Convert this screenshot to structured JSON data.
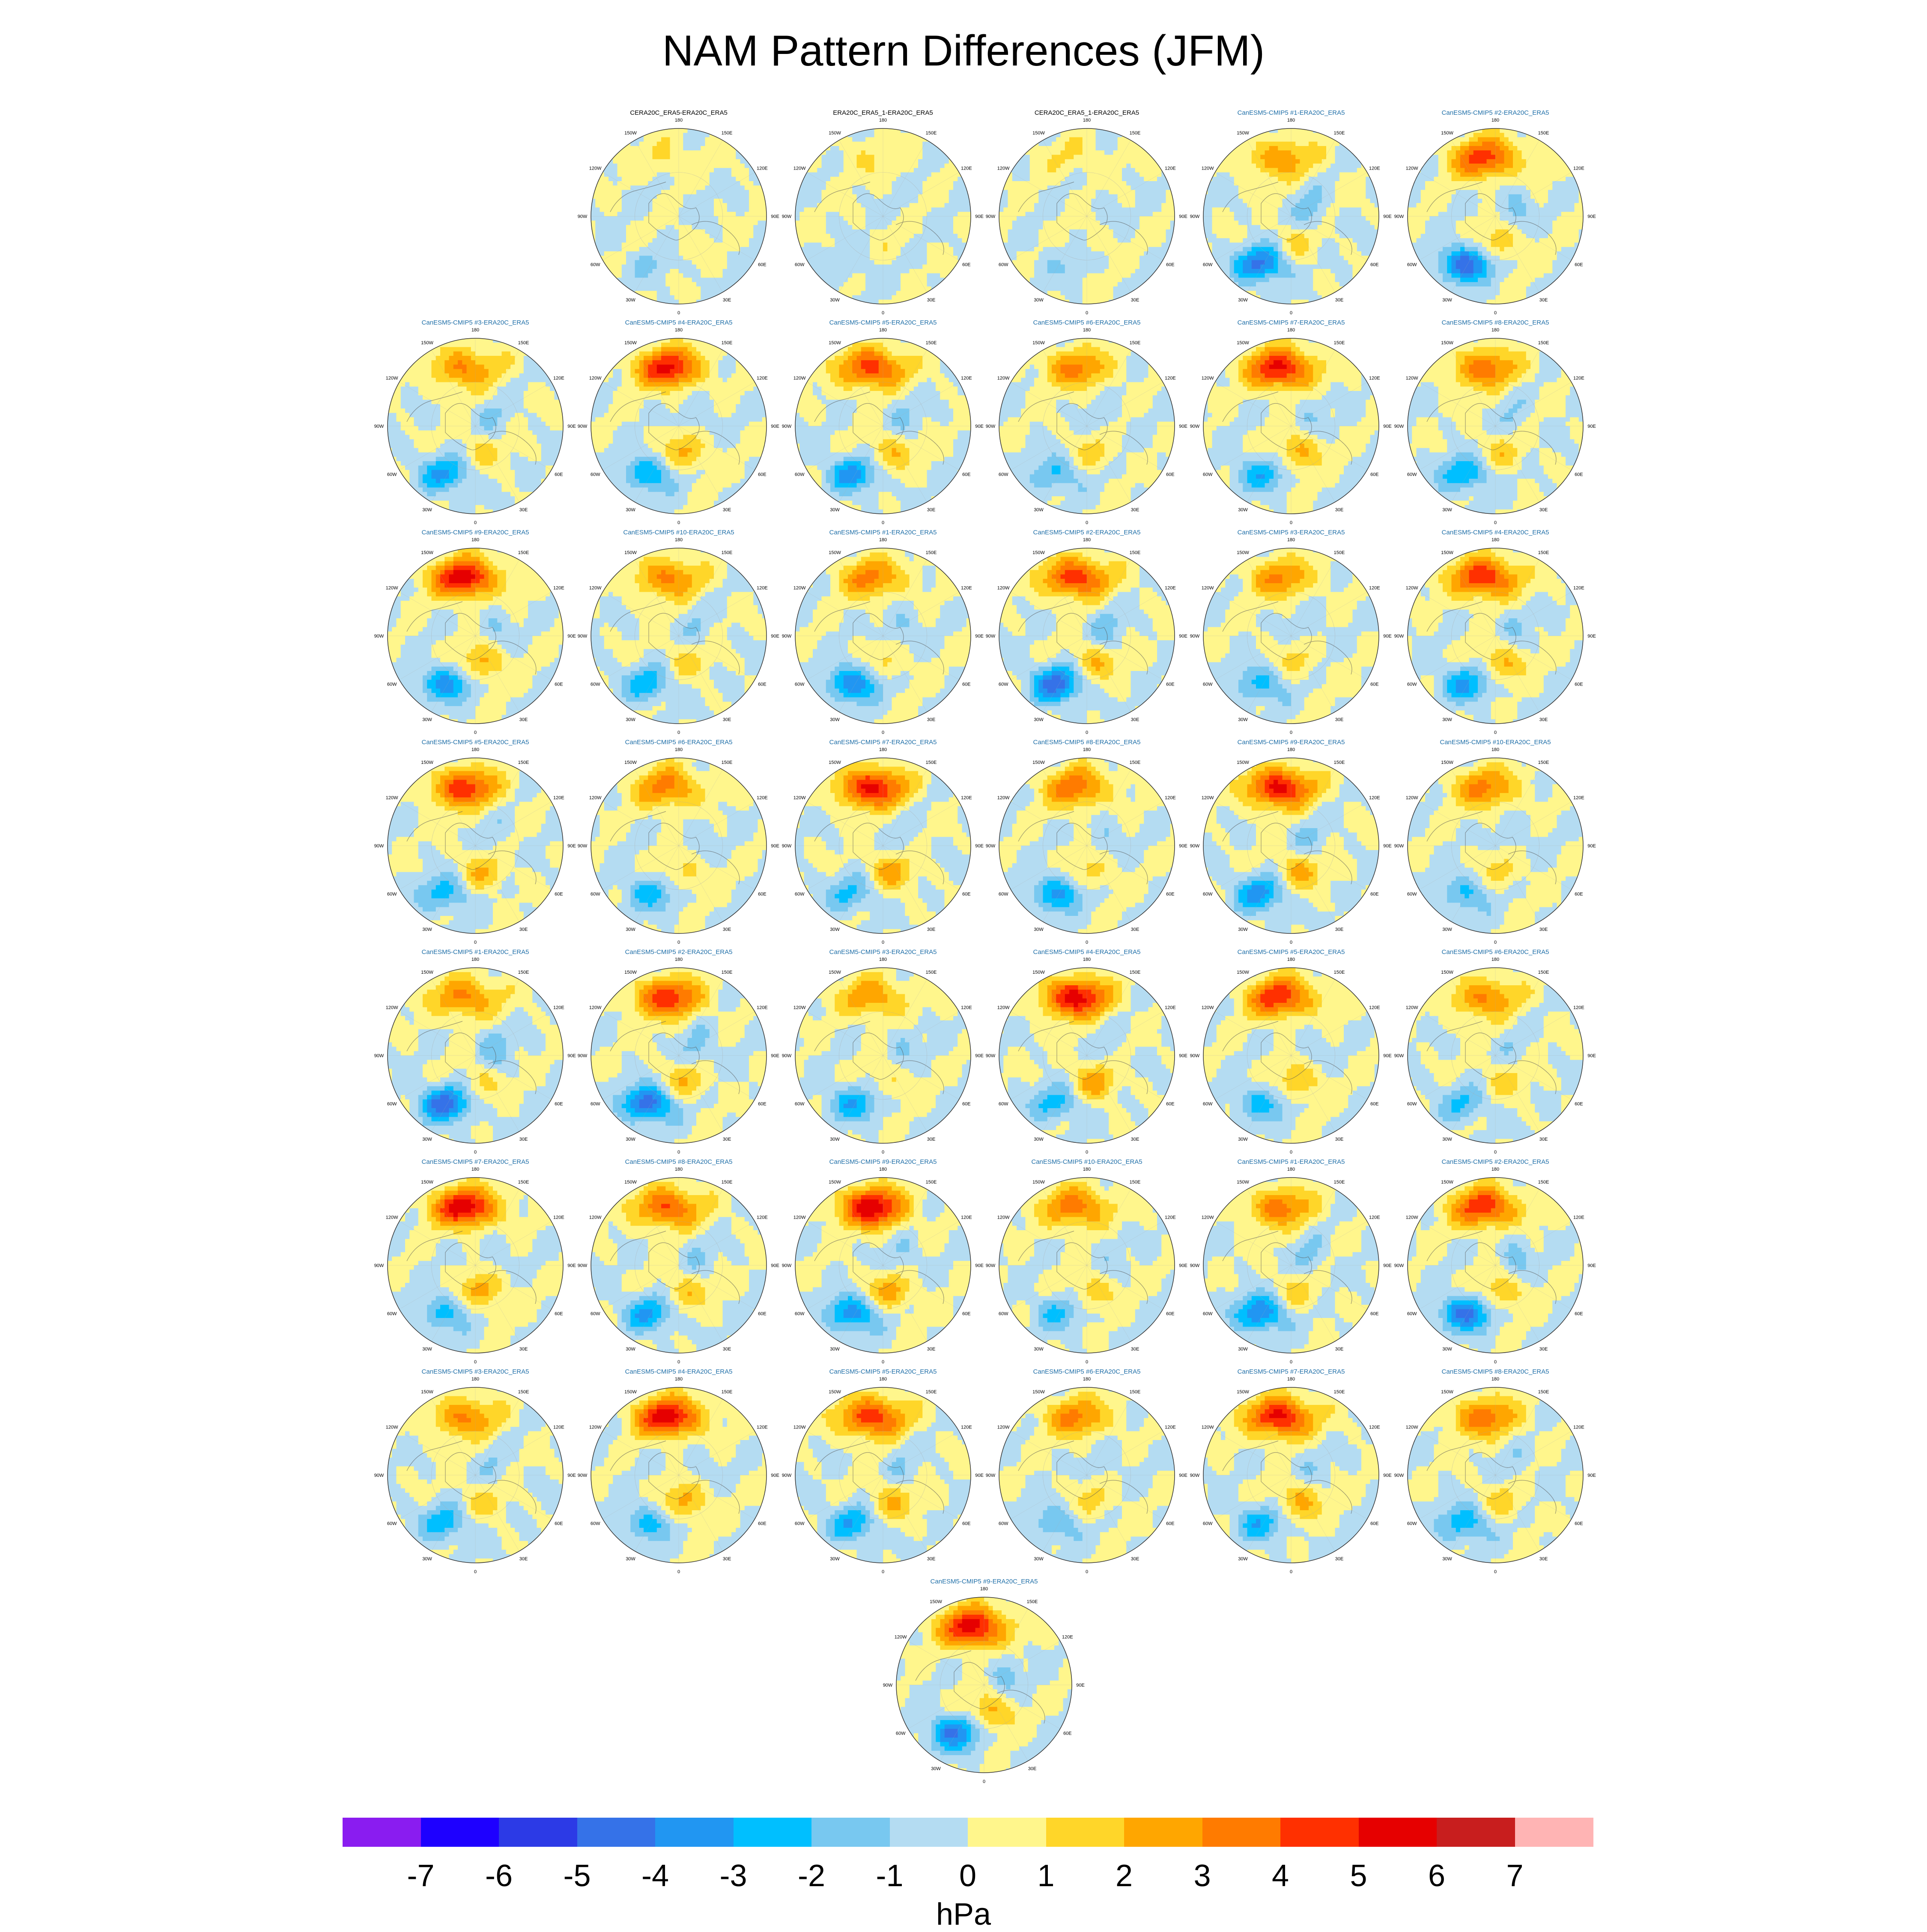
{
  "title": "NAM Pattern Differences (JFM)",
  "units": "hPa",
  "chart_data": {
    "type": "heatmap",
    "title": "NAM Pattern Differences (JFM)",
    "projection": "polar stereographic (North Pole)",
    "longitude_labels": [
      "180",
      "150E",
      "120E",
      "90E",
      "60E",
      "30E",
      "0",
      "30W",
      "60W",
      "90W",
      "120W",
      "150W"
    ],
    "colorbar": {
      "units": "hPa",
      "tick_labels": [
        "-7",
        "-6",
        "-5",
        "-4",
        "-3",
        "-2",
        "-1",
        "0",
        "1",
        "2",
        "3",
        "4",
        "5",
        "6",
        "7"
      ],
      "colors": [
        "#8a1cf0",
        "#1e00ff",
        "#2c3ae6",
        "#3572e8",
        "#2196f2",
        "#00bfff",
        "#78c8f0",
        "#b4dcf2",
        "#fff68c",
        "#ffd629",
        "#ffa600",
        "#ff7b00",
        "#ff3000",
        "#e60000",
        "#c81e1e",
        "#ffb4b4"
      ]
    },
    "panels": [
      {
        "title": "CERA20C_ERA5-ERA20C_ERA5",
        "kind": "obs",
        "pos_amp": 1.1,
        "neg_amp": 0.9
      },
      {
        "title": "ERA20C_ERA5_1-ERA20C_ERA5",
        "kind": "obs",
        "pos_amp": 1.0,
        "neg_amp": 0.8
      },
      {
        "title": "CERA20C_ERA5_1-ERA20C_ERA5",
        "kind": "obs",
        "pos_amp": 1.0,
        "neg_amp": 0.8
      },
      {
        "title": "CanESM5-CMIP5 #1-ERA20C_ERA5",
        "kind": "model",
        "pos_amp": 2.8,
        "neg_amp": 4.2
      },
      {
        "title": "CanESM5-CMIP5 #2-ERA20C_ERA5",
        "kind": "model",
        "pos_amp": 4.5,
        "neg_amp": 4.6
      },
      {
        "title": "CanESM5-CMIP5 #3-ERA20C_ERA5",
        "kind": "model",
        "pos_amp": 3.2,
        "neg_amp": 3.1
      },
      {
        "title": "CanESM5-CMIP5 #4-ERA20C_ERA5",
        "kind": "model",
        "pos_amp": 5.2,
        "neg_amp": 3.0
      },
      {
        "title": "CanESM5-CMIP5 #5-ERA20C_ERA5",
        "kind": "model",
        "pos_amp": 4.6,
        "neg_amp": 3.2
      },
      {
        "title": "CanESM5-CMIP5 #6-ERA20C_ERA5",
        "kind": "model",
        "pos_amp": 3.2,
        "neg_amp": 2.2
      },
      {
        "title": "CanESM5-CMIP5 #7-ERA20C_ERA5",
        "kind": "model",
        "pos_amp": 5.4,
        "neg_amp": 2.6
      },
      {
        "title": "CanESM5-CMIP5 #8-ERA20C_ERA5",
        "kind": "model",
        "pos_amp": 3.6,
        "neg_amp": 3.0
      },
      {
        "title": "CanESM5-CMIP5 #9-ERA20C_ERA5",
        "kind": "model",
        "pos_amp": 5.6,
        "neg_amp": 3.4
      },
      {
        "title": "CanESM5-CMIP5 #10-ERA20C_ERA5",
        "kind": "model",
        "pos_amp": 3.3,
        "neg_amp": 2.6
      },
      {
        "title": "CanESM5-CMIP5 #1-ERA20C_ERA5",
        "kind": "model",
        "pos_amp": 3.2,
        "neg_amp": 3.8
      },
      {
        "title": "CanESM5-CMIP5 #2-ERA20C_ERA5",
        "kind": "model",
        "pos_amp": 4.8,
        "neg_amp": 4.4
      },
      {
        "title": "CanESM5-CMIP5 #3-ERA20C_ERA5",
        "kind": "model",
        "pos_amp": 3.0,
        "neg_amp": 2.4
      },
      {
        "title": "CanESM5-CMIP5 #4-ERA20C_ERA5",
        "kind": "model",
        "pos_amp": 5.0,
        "neg_amp": 3.0
      },
      {
        "title": "CanESM5-CMIP5 #5-ERA20C_ERA5",
        "kind": "model",
        "pos_amp": 4.6,
        "neg_amp": 2.6
      },
      {
        "title": "CanESM5-CMIP5 #6-ERA20C_ERA5",
        "kind": "model",
        "pos_amp": 3.4,
        "neg_amp": 2.4
      },
      {
        "title": "CanESM5-CMIP5 #7-ERA20C_ERA5",
        "kind": "model",
        "pos_amp": 5.4,
        "neg_amp": 2.2
      },
      {
        "title": "CanESM5-CMIP5 #8-ERA20C_ERA5",
        "kind": "model",
        "pos_amp": 3.6,
        "neg_amp": 3.2
      },
      {
        "title": "CanESM5-CMIP5 #9-ERA20C_ERA5",
        "kind": "model",
        "pos_amp": 5.4,
        "neg_amp": 3.4
      },
      {
        "title": "CanESM5-CMIP5 #10-ERA20C_ERA5",
        "kind": "model",
        "pos_amp": 3.2,
        "neg_amp": 2.2
      },
      {
        "title": "CanESM5-CMIP5 #1-ERA20C_ERA5",
        "kind": "model",
        "pos_amp": 3.3,
        "neg_amp": 4.4
      },
      {
        "title": "CanESM5-CMIP5 #2-ERA20C_ERA5",
        "kind": "model",
        "pos_amp": 4.8,
        "neg_amp": 4.6
      },
      {
        "title": "CanESM5-CMIP5 #3-ERA20C_ERA5",
        "kind": "model",
        "pos_amp": 2.8,
        "neg_amp": 2.8
      },
      {
        "title": "CanESM5-CMIP5 #4-ERA20C_ERA5",
        "kind": "model",
        "pos_amp": 5.6,
        "neg_amp": 2.4
      },
      {
        "title": "CanESM5-CMIP5 #5-ERA20C_ERA5",
        "kind": "model",
        "pos_amp": 4.8,
        "neg_amp": 2.4
      },
      {
        "title": "CanESM5-CMIP5 #6-ERA20C_ERA5",
        "kind": "model",
        "pos_amp": 3.2,
        "neg_amp": 2.0
      },
      {
        "title": "CanESM5-CMIP5 #7-ERA20C_ERA5",
        "kind": "model",
        "pos_amp": 5.6,
        "neg_amp": 2.4
      },
      {
        "title": "CanESM5-CMIP5 #8-ERA20C_ERA5",
        "kind": "model",
        "pos_amp": 4.2,
        "neg_amp": 3.0
      },
      {
        "title": "CanESM5-CMIP5 #9-ERA20C_ERA5",
        "kind": "model",
        "pos_amp": 5.8,
        "neg_amp": 3.6
      },
      {
        "title": "CanESM5-CMIP5 #10-ERA20C_ERA5",
        "kind": "model",
        "pos_amp": 3.6,
        "neg_amp": 2.0
      },
      {
        "title": "CanESM5-CMIP5 #1-ERA20C_ERA5",
        "kind": "model",
        "pos_amp": 3.4,
        "neg_amp": 4.0
      },
      {
        "title": "CanESM5-CMIP5 #2-ERA20C_ERA5",
        "kind": "model",
        "pos_amp": 4.8,
        "neg_amp": 4.2
      },
      {
        "title": "CanESM5-CMIP5 #3-ERA20C_ERA5",
        "kind": "model",
        "pos_amp": 3.2,
        "neg_amp": 2.6
      },
      {
        "title": "CanESM5-CMIP5 #4-ERA20C_ERA5",
        "kind": "model",
        "pos_amp": 5.6,
        "neg_amp": 2.4
      },
      {
        "title": "CanESM5-CMIP5 #5-ERA20C_ERA5",
        "kind": "model",
        "pos_amp": 4.8,
        "neg_amp": 2.8
      },
      {
        "title": "CanESM5-CMIP5 #6-ERA20C_ERA5",
        "kind": "model",
        "pos_amp": 3.2,
        "neg_amp": 2.0
      },
      {
        "title": "CanESM5-CMIP5 #7-ERA20C_ERA5",
        "kind": "model",
        "pos_amp": 5.4,
        "neg_amp": 2.6
      },
      {
        "title": "CanESM5-CMIP5 #8-ERA20C_ERA5",
        "kind": "model",
        "pos_amp": 3.6,
        "neg_amp": 2.8
      },
      {
        "title": "CanESM5-CMIP5 #9-ERA20C_ERA5",
        "kind": "model",
        "pos_amp": 5.6,
        "neg_amp": 4.0
      }
    ]
  }
}
